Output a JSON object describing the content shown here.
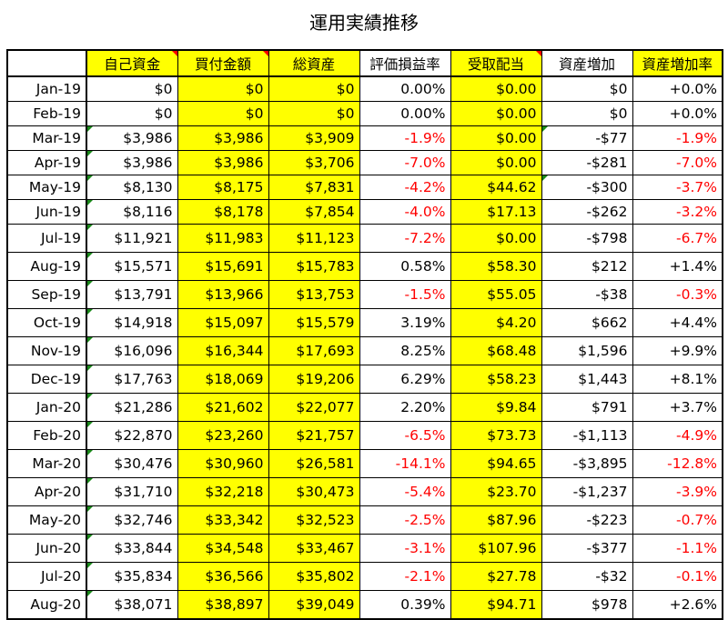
{
  "title": "運用実績推移",
  "columns": [
    "自己資金",
    "買付金額",
    "総資産",
    "評価損益率",
    "受取配当",
    "資産増加",
    "資産増加率"
  ],
  "rows": [
    {
      "date": "Jan-19",
      "own": "$0",
      "buy": "$0",
      "total": "$0",
      "rate": "0.00%",
      "div": "$0.00",
      "inc": "$0",
      "incr": "+0.0%",
      "tall": false
    },
    {
      "date": "Feb-19",
      "own": "$0",
      "buy": "$0",
      "total": "$0",
      "rate": "0.00%",
      "div": "$0.00",
      "inc": "$0",
      "incr": "+0.0%",
      "tall": false
    },
    {
      "date": "Mar-19",
      "own": "$3,986",
      "buy": "$3,986",
      "total": "$3,909",
      "rate": "-1.9%",
      "div": "$0.00",
      "inc": "-$77",
      "incr": "-1.9%",
      "tall": false
    },
    {
      "date": "Apr-19",
      "own": "$3,986",
      "buy": "$3,986",
      "total": "$3,706",
      "rate": "-7.0%",
      "div": "$0.00",
      "inc": "-$281",
      "incr": "-7.0%",
      "tall": false
    },
    {
      "date": "May-19",
      "own": "$8,130",
      "buy": "$8,175",
      "total": "$7,831",
      "rate": "-4.2%",
      "div": "$44.62",
      "inc": "-$300",
      "incr": "-3.7%",
      "tall": false
    },
    {
      "date": "Jun-19",
      "own": "$8,116",
      "buy": "$8,178",
      "total": "$7,854",
      "rate": "-4.0%",
      "div": "$17.13",
      "inc": "-$262",
      "incr": "-3.2%",
      "tall": false
    },
    {
      "date": "Jul-19",
      "own": "$11,921",
      "buy": "$11,983",
      "total": "$11,123",
      "rate": "-7.2%",
      "div": "$0.00",
      "inc": "-$798",
      "incr": "-6.7%",
      "tall": true
    },
    {
      "date": "Aug-19",
      "own": "$15,571",
      "buy": "$15,691",
      "total": "$15,783",
      "rate": "0.58%",
      "div": "$58.30",
      "inc": "$212",
      "incr": "+1.4%",
      "tall": true
    },
    {
      "date": "Sep-19",
      "own": "$13,791",
      "buy": "$13,966",
      "total": "$13,753",
      "rate": "-1.5%",
      "div": "$55.05",
      "inc": "-$38",
      "incr": "-0.3%",
      "tall": true
    },
    {
      "date": "Oct-19",
      "own": "$14,918",
      "buy": "$15,097",
      "total": "$15,579",
      "rate": "3.19%",
      "div": "$4.20",
      "inc": "$662",
      "incr": "+4.4%",
      "tall": true
    },
    {
      "date": "Nov-19",
      "own": "$16,096",
      "buy": "$16,344",
      "total": "$17,693",
      "rate": "8.25%",
      "div": "$68.48",
      "inc": "$1,596",
      "incr": "+9.9%",
      "tall": true
    },
    {
      "date": "Dec-19",
      "own": "$17,763",
      "buy": "$18,069",
      "total": "$19,206",
      "rate": "6.29%",
      "div": "$58.23",
      "inc": "$1,443",
      "incr": "+8.1%",
      "tall": true
    },
    {
      "date": "Jan-20",
      "own": "$21,286",
      "buy": "$21,602",
      "total": "$22,077",
      "rate": "2.20%",
      "div": "$9.84",
      "inc": "$791",
      "incr": "+3.7%",
      "tall": true
    },
    {
      "date": "Feb-20",
      "own": "$22,870",
      "buy": "$23,260",
      "total": "$21,757",
      "rate": "-6.5%",
      "div": "$73.73",
      "inc": "-$1,113",
      "incr": "-4.9%",
      "tall": true
    },
    {
      "date": "Mar-20",
      "own": "$30,476",
      "buy": "$30,960",
      "total": "$26,581",
      "rate": "-14.1%",
      "div": "$94.65",
      "inc": "-$3,895",
      "incr": "-12.8%",
      "tall": true
    },
    {
      "date": "Apr-20",
      "own": "$31,710",
      "buy": "$32,218",
      "total": "$30,473",
      "rate": "-5.4%",
      "div": "$23.70",
      "inc": "-$1,237",
      "incr": "-3.9%",
      "tall": true
    },
    {
      "date": "May-20",
      "own": "$32,746",
      "buy": "$33,342",
      "total": "$32,523",
      "rate": "-2.5%",
      "div": "$87.96",
      "inc": "-$223",
      "incr": "-0.7%",
      "tall": true
    },
    {
      "date": "Jun-20",
      "own": "$33,844",
      "buy": "$34,548",
      "total": "$33,467",
      "rate": "-3.1%",
      "div": "$107.96",
      "inc": "-$377",
      "incr": "-1.1%",
      "tall": true
    },
    {
      "date": "Jul-20",
      "own": "$35,834",
      "buy": "$36,566",
      "total": "$35,802",
      "rate": "-2.1%",
      "div": "$27.78",
      "inc": "-$32",
      "incr": "-0.1%",
      "tall": true
    },
    {
      "date": "Aug-20",
      "own": "$38,071",
      "buy": "$38,897",
      "total": "$39,049",
      "rate": "0.39%",
      "div": "$94.71",
      "inc": "$978",
      "incr": "+2.6%",
      "tall": true
    }
  ],
  "colors": {
    "highlight": "#ffff00",
    "negative": "#ff0000",
    "comment_flag": "#ff0000",
    "note_marker": "#1a8a1a"
  }
}
